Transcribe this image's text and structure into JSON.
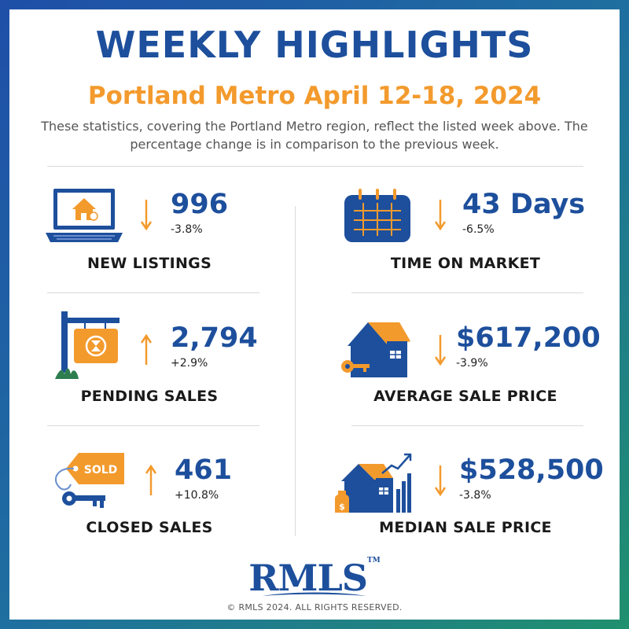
{
  "header": {
    "title": "WEEKLY HIGHLIGHTS",
    "subtitle": "Portland Metro April 12-18, 2024",
    "description": "These statistics, covering the Portland Metro region, reflect the listed week above. The percentage change is in comparison to the previous week."
  },
  "stats": {
    "new_listings": {
      "value": "996",
      "change": "-3.8%",
      "label": "NEW LISTINGS",
      "direction": "down",
      "icon": "laptop-house-icon"
    },
    "time_on_market": {
      "value": "43 Days",
      "change": "-6.5%",
      "label": "TIME ON MARKET",
      "direction": "down",
      "icon": "calendar-icon"
    },
    "pending_sales": {
      "value": "2,794",
      "change": "+2.9%",
      "label": "PENDING SALES",
      "direction": "up",
      "icon": "pending-sign-icon"
    },
    "average_sale_price": {
      "value": "$617,200",
      "change": "-3.9%",
      "label": "AVERAGE SALE PRICE",
      "direction": "down",
      "icon": "house-key-icon"
    },
    "closed_sales": {
      "value": "461",
      "change": "+10.8%",
      "label": "CLOSED SALES",
      "direction": "up",
      "icon": "sold-tag-icon",
      "tag_text": "SOLD"
    },
    "median_sale_price": {
      "value": "$528,500",
      "change": "-3.8%",
      "label": "MEDIAN SALE PRICE",
      "direction": "down",
      "icon": "house-growth-chart-icon"
    }
  },
  "logo": {
    "text": "RMLS",
    "tm": "TM"
  },
  "footer": {
    "copyright": "© RMLS 2024. ALL RIGHTS RESERVED."
  },
  "colors": {
    "blue": "#1d4f9c",
    "orange": "#f39a2d",
    "green": "#2e7d4f"
  }
}
